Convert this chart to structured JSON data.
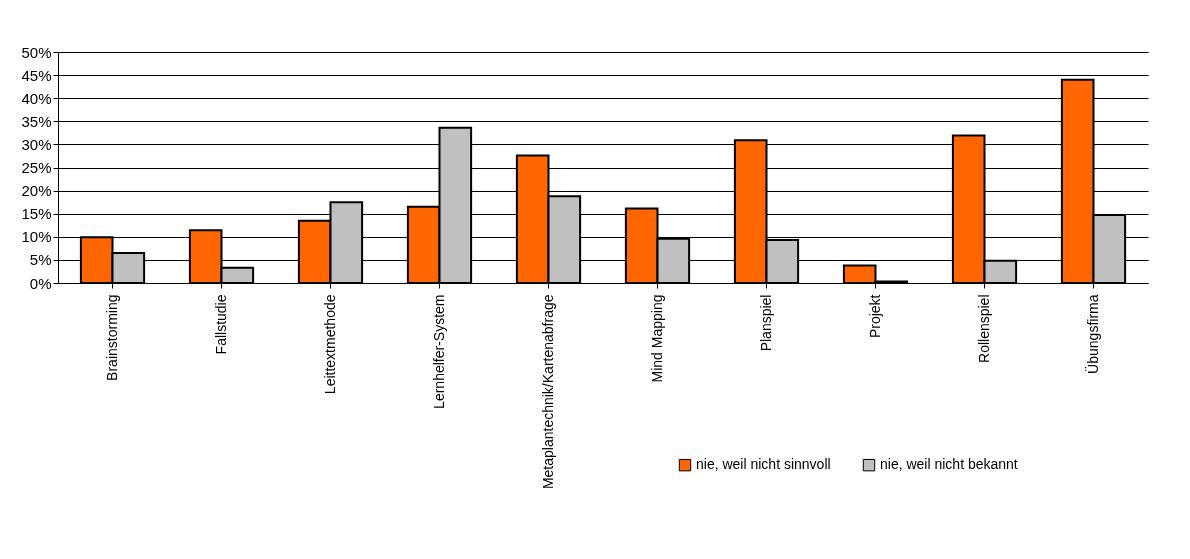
{
  "chart_data": {
    "type": "bar",
    "categories": [
      "Brainstorming",
      "Fallstudie",
      "Leittextmethode",
      "Lernhelfer-System",
      "Metaplantechnik/Kartenabfrage",
      "Mind Mapping",
      "Planspiel",
      "Projekt",
      "Rollenspiel",
      "Übungsfirma"
    ],
    "series": [
      {
        "name": "nie, weil nicht sinnvoll",
        "color": "#ff6600",
        "values": [
          9.9,
          11.4,
          13.5,
          16.5,
          27.6,
          16.1,
          30.9,
          3.8,
          31.9,
          44.0
        ]
      },
      {
        "name": "nie, weil nicht bekannt",
        "color": "#c0c0c0",
        "values": [
          6.5,
          3.3,
          17.5,
          33.6,
          18.8,
          9.6,
          9.3,
          0.3,
          4.8,
          14.7
        ]
      }
    ],
    "ylim": [
      0,
      50
    ],
    "yticks": [
      {
        "value": 0,
        "label": "0%"
      },
      {
        "value": 5,
        "label": "5%"
      },
      {
        "value": 10,
        "label": "10%"
      },
      {
        "value": 15,
        "label": "15%"
      },
      {
        "value": 20,
        "label": "20%"
      },
      {
        "value": 25,
        "label": "25%"
      },
      {
        "value": 30,
        "label": "30%"
      },
      {
        "value": 35,
        "label": "35%"
      },
      {
        "value": 40,
        "label": "40%"
      },
      {
        "value": 45,
        "label": "45%"
      },
      {
        "value": 50,
        "label": "50%"
      }
    ],
    "grid": "y",
    "legend": "bottom right"
  }
}
